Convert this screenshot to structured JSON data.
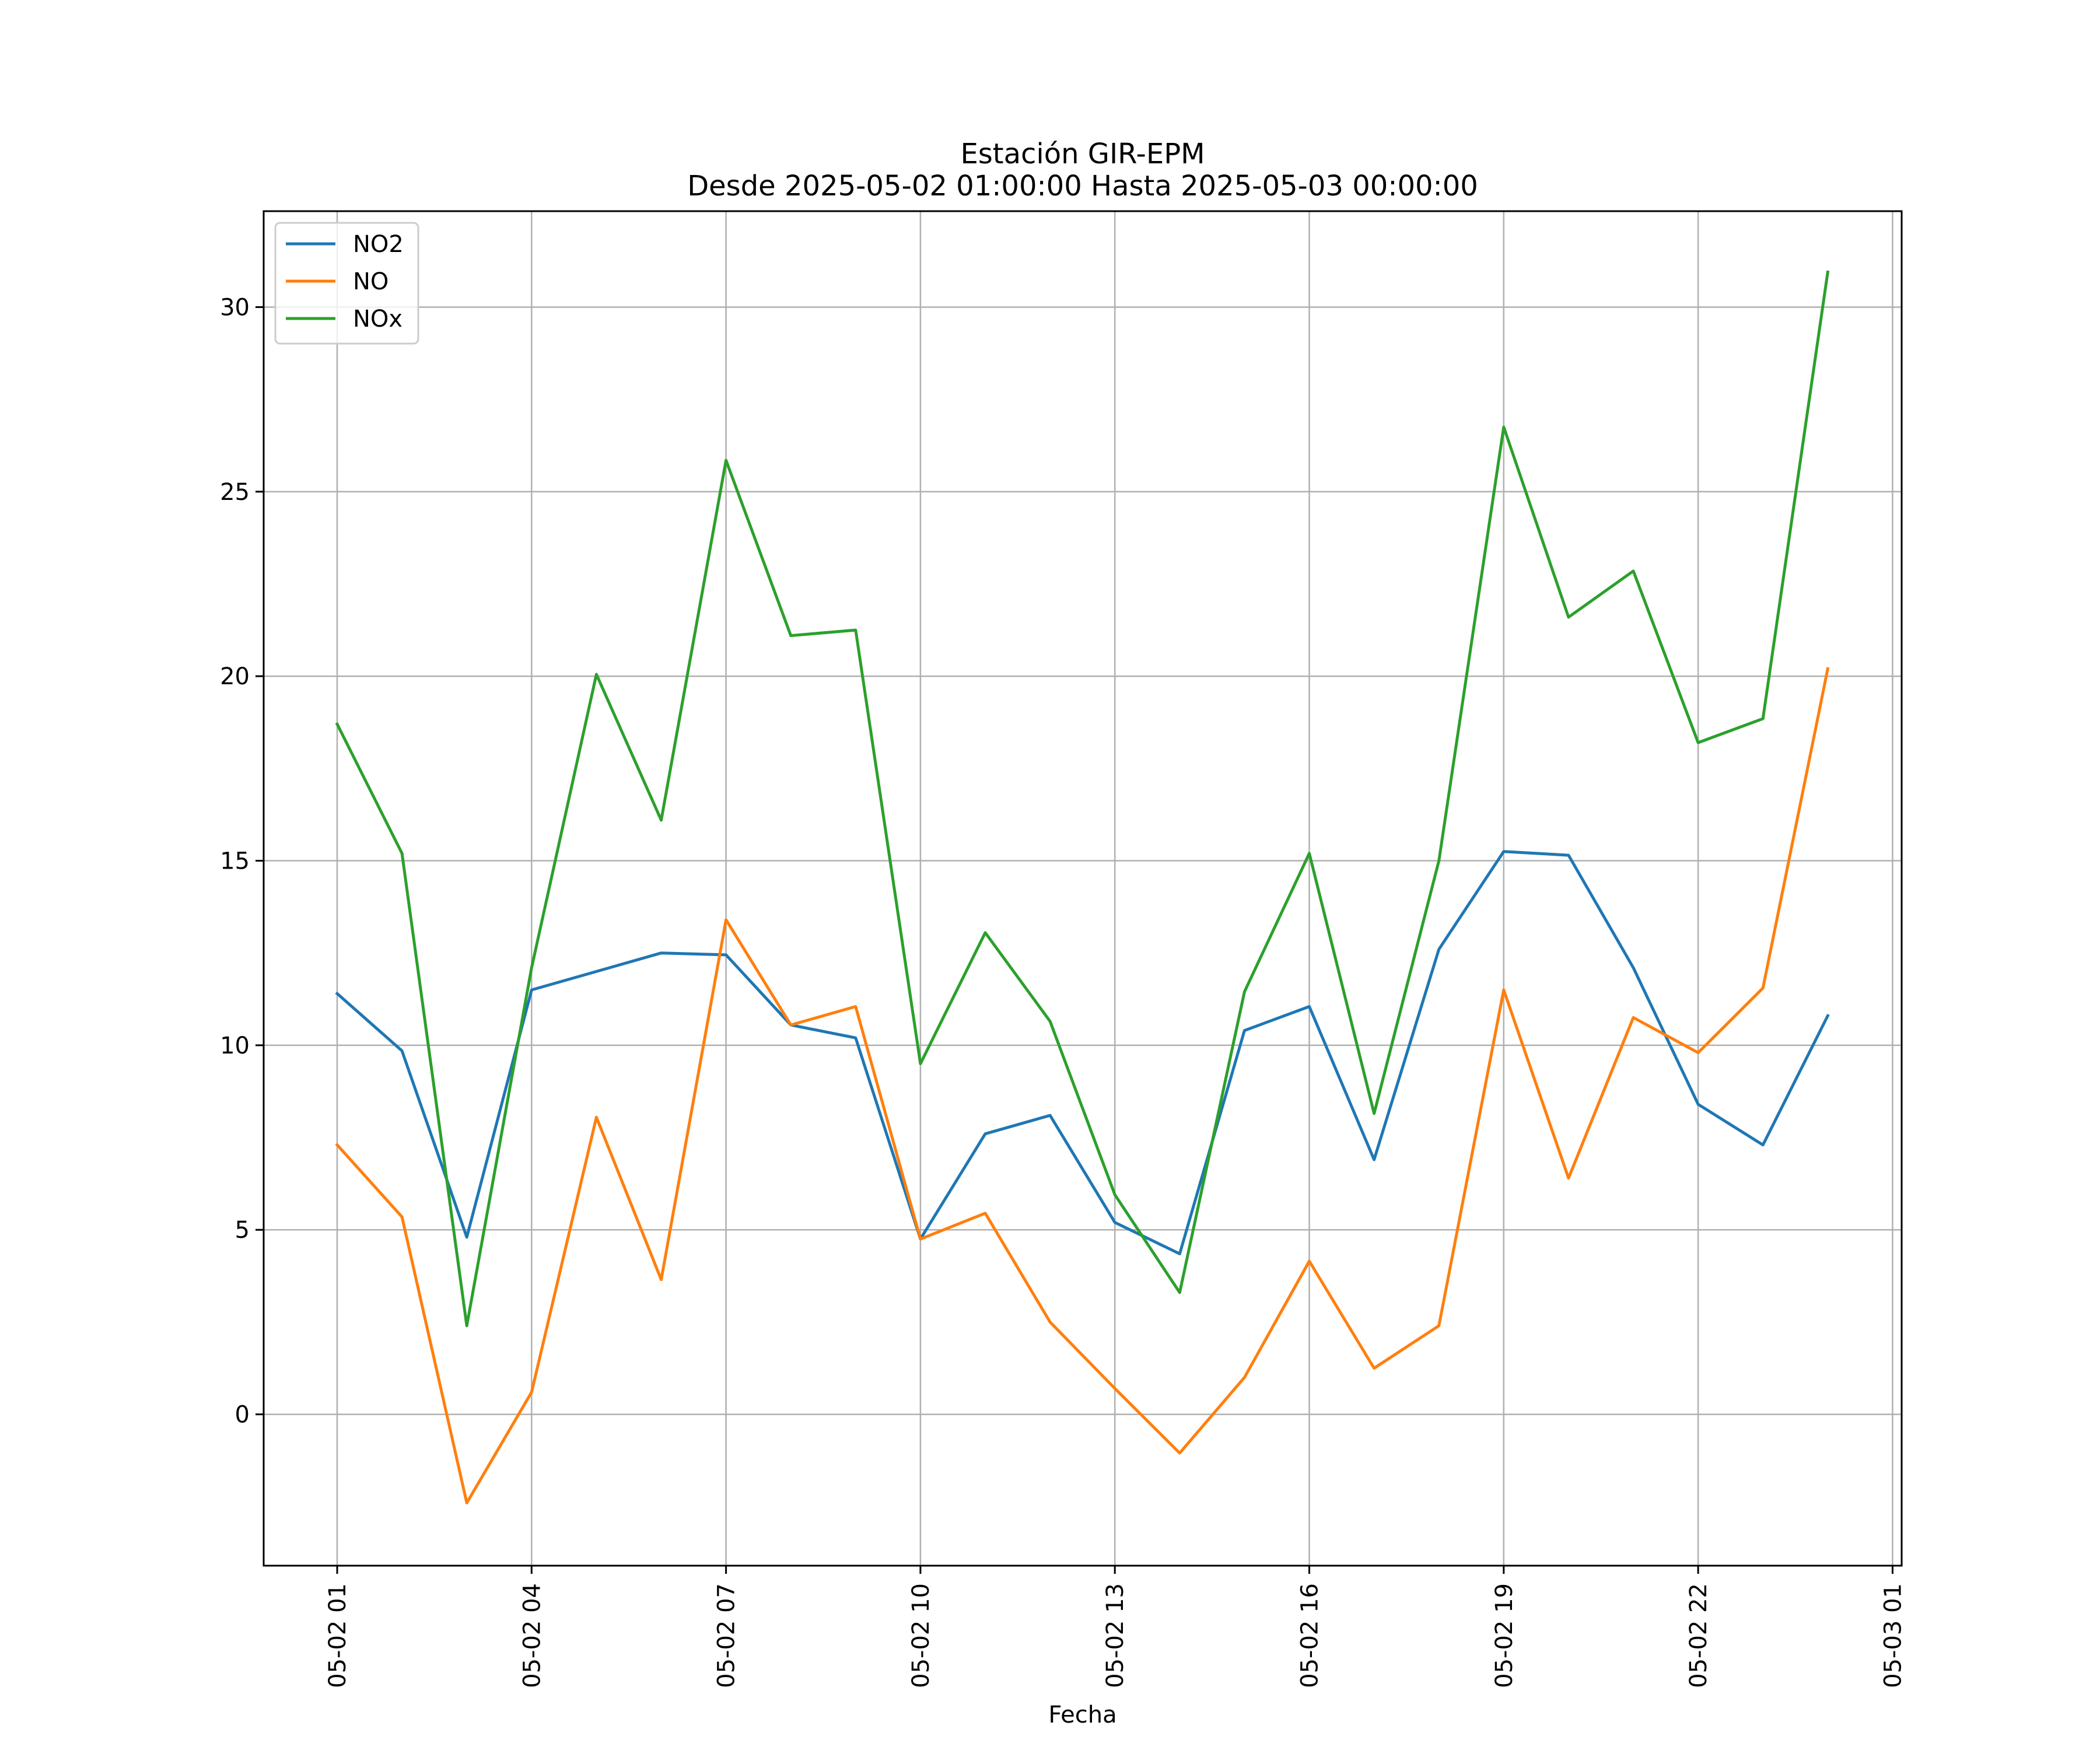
{
  "chart_data": {
    "type": "line",
    "title": "Estación GIR-EPM",
    "subtitle": "Desde 2025-05-02 01:00:00 Hasta 2025-05-03 00:00:00",
    "xlabel": "Fecha",
    "ylabel": "",
    "x": [
      "2025-05-02 01:00",
      "2025-05-02 02:00",
      "2025-05-02 03:00",
      "2025-05-02 04:00",
      "2025-05-02 05:00",
      "2025-05-02 06:00",
      "2025-05-02 07:00",
      "2025-05-02 08:00",
      "2025-05-02 09:00",
      "2025-05-02 10:00",
      "2025-05-02 11:00",
      "2025-05-02 12:00",
      "2025-05-02 13:00",
      "2025-05-02 14:00",
      "2025-05-02 15:00",
      "2025-05-02 16:00",
      "2025-05-02 17:00",
      "2025-05-02 18:00",
      "2025-05-02 19:00",
      "2025-05-02 20:00",
      "2025-05-02 21:00",
      "2025-05-02 22:00",
      "2025-05-02 23:00",
      "2025-05-03 00:00"
    ],
    "series": [
      {
        "name": "NO2",
        "color": "#1f77b4",
        "values": [
          11.4,
          9.85,
          4.8,
          11.5,
          12.0,
          12.5,
          12.45,
          10.55,
          10.2,
          4.75,
          7.6,
          8.1,
          5.2,
          4.35,
          10.4,
          11.05,
          6.9,
          12.6,
          15.25,
          15.15,
          12.1,
          8.4,
          7.3,
          10.8
        ]
      },
      {
        "name": "NO",
        "color": "#ff7f0e",
        "values": [
          7.3,
          5.35,
          -2.4,
          0.6,
          8.05,
          3.65,
          13.4,
          10.55,
          11.05,
          4.75,
          5.45,
          2.5,
          0.7,
          -1.05,
          1.0,
          4.15,
          1.25,
          2.4,
          11.5,
          6.4,
          10.75,
          9.8,
          11.55,
          20.2
        ]
      },
      {
        "name": "NOx",
        "color": "#2ca02c",
        "values": [
          18.7,
          15.2,
          2.4,
          12.1,
          20.05,
          16.1,
          25.85,
          21.1,
          21.25,
          9.5,
          13.05,
          10.65,
          5.95,
          3.3,
          11.45,
          15.2,
          8.15,
          15.0,
          26.75,
          21.6,
          22.85,
          18.2,
          18.85,
          30.95
        ]
      }
    ],
    "ylim": [
      -4.1,
      32.6
    ],
    "yticks": [
      0,
      5,
      10,
      15,
      20,
      25,
      30
    ],
    "xticks": [
      "05-02 01",
      "05-02 04",
      "05-02 07",
      "05-02 10",
      "05-02 13",
      "05-02 16",
      "05-02 19",
      "05-02 22",
      "05-03 01"
    ],
    "grid": true,
    "legend_position": "upper left"
  }
}
